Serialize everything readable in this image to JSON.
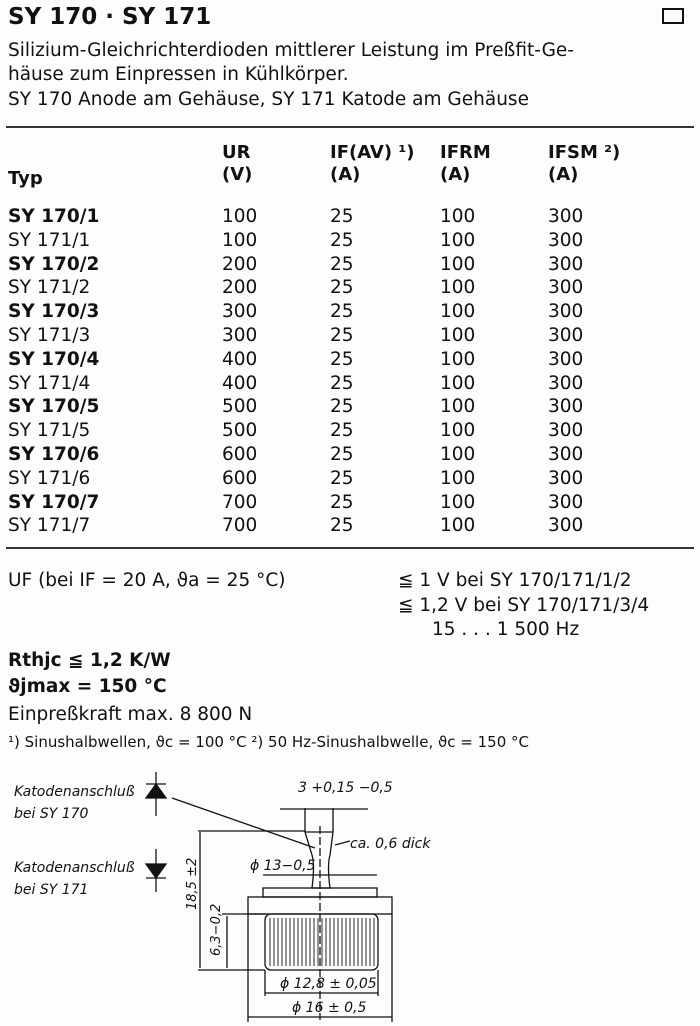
{
  "title": "SY 170 · SY 171",
  "description": [
    "Silizium-Gleichrichterdioden mittlerer Leistung im Preßfit-Ge-",
    "häuse zum Einpressen in Kühlkörper.",
    "SY 170 Anode am Gehäuse, SY 171 Katode am Gehäuse"
  ],
  "table": {
    "headers": [
      {
        "name": "Typ",
        "unit": ""
      },
      {
        "name": "UR",
        "unit": "(V)"
      },
      {
        "name": "IF(AV) ¹)",
        "unit": "(A)"
      },
      {
        "name": "IFRM",
        "unit": "(A)"
      },
      {
        "name": "IFSM ²)",
        "unit": "(A)"
      }
    ],
    "rows": [
      [
        "SY 170/1",
        "100",
        "25",
        "100",
        "300"
      ],
      [
        "SY 171/1",
        "100",
        "25",
        "100",
        "300"
      ],
      [
        "SY 170/2",
        "200",
        "25",
        "100",
        "300"
      ],
      [
        "SY 171/2",
        "200",
        "25",
        "100",
        "300"
      ],
      [
        "SY 170/3",
        "300",
        "25",
        "100",
        "300"
      ],
      [
        "SY 171/3",
        "300",
        "25",
        "100",
        "300"
      ],
      [
        "SY 170/4",
        "400",
        "25",
        "100",
        "300"
      ],
      [
        "SY 171/4",
        "400",
        "25",
        "100",
        "300"
      ],
      [
        "SY 170/5",
        "500",
        "25",
        "100",
        "300"
      ],
      [
        "SY 171/5",
        "500",
        "25",
        "100",
        "300"
      ],
      [
        "SY 170/6",
        "600",
        "25",
        "100",
        "300"
      ],
      [
        "SY 171/6",
        "600",
        "25",
        "100",
        "300"
      ],
      [
        "SY 170/7",
        "700",
        "25",
        "100",
        "300"
      ],
      [
        "SY 171/7",
        "700",
        "25",
        "100",
        "300"
      ]
    ]
  },
  "specs": {
    "uf_label": "UF (bei IF = 20 A, ϑa = 25 °C)",
    "uf_values": [
      "≦ 1 V bei SY 170/171/1/2",
      "≦ 1,2 V bei SY 170/171/3/4",
      "15 . . . 1 500 Hz"
    ],
    "rthjc": "Rthjc ≦ 1,2 K/W",
    "tjmax": "ϑjmax = 150 °C",
    "force": "Einpreßkraft max. 8 800 N",
    "footnotes": "¹) Sinushalbwellen, ϑc = 100 °C   ²) 50 Hz-Sinushalbwelle, ϑc = 150 °C"
  },
  "drawing": {
    "label1": [
      "Katodenanschluß",
      "bei SY 170"
    ],
    "label2": [
      "Katodenanschluß",
      "bei SY 171"
    ],
    "dim_width": "3 +0,15 −0,5",
    "thickness": "ca. 0,6 dick",
    "dim_d13": "ϕ 13−0,5",
    "dim_height": "18,5 ±2",
    "dim_h63": "6,3−0,2",
    "dim_d128": "ϕ 12,8 ± 0,05",
    "dim_d16": "ϕ 16 ± 0,5"
  }
}
